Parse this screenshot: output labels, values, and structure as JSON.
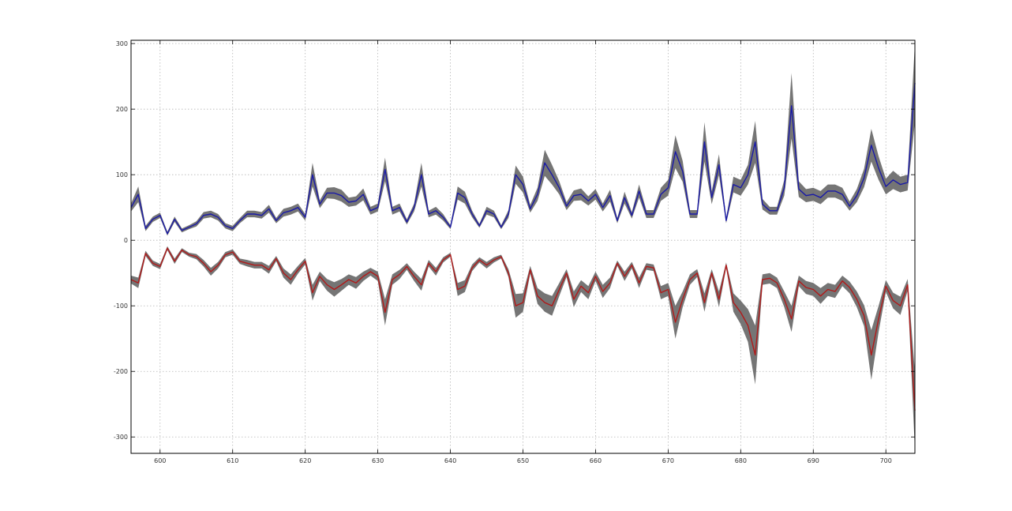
{
  "chart_data": {
    "type": "line",
    "title": "",
    "xlabel": "",
    "ylabel": "",
    "xlim": [
      596,
      704
    ],
    "ylim": [
      -325,
      305
    ],
    "grid": true,
    "x_ticks": [
      600,
      610,
      620,
      630,
      640,
      650,
      660,
      670,
      680,
      690,
      700
    ],
    "y_ticks": [
      300,
      200,
      100,
      0,
      -100,
      -200,
      -300
    ],
    "x_tick_labels": [
      "600",
      "610",
      "620",
      "630",
      "640",
      "650",
      "660",
      "670",
      "680",
      "690",
      "700"
    ],
    "y_tick_labels": [
      "300",
      "200",
      "100",
      "0",
      "-100",
      "-200",
      "-300"
    ],
    "band_color": "#6e6e6e",
    "series": [
      {
        "color": "#1a1aa6",
        "band": "gray",
        "points": [
          [
            596,
            50
          ],
          [
            597,
            70
          ],
          [
            598,
            18
          ],
          [
            599,
            32
          ],
          [
            600,
            38
          ],
          [
            601,
            10
          ],
          [
            602,
            32
          ],
          [
            603,
            15
          ],
          [
            604,
            20
          ],
          [
            605,
            25
          ],
          [
            606,
            38
          ],
          [
            607,
            40
          ],
          [
            608,
            35
          ],
          [
            609,
            22
          ],
          [
            610,
            18
          ],
          [
            611,
            30
          ],
          [
            612,
            40
          ],
          [
            613,
            40
          ],
          [
            614,
            38
          ],
          [
            615,
            48
          ],
          [
            616,
            30
          ],
          [
            617,
            42
          ],
          [
            618,
            45
          ],
          [
            619,
            50
          ],
          [
            620,
            35
          ],
          [
            621,
            100
          ],
          [
            622,
            55
          ],
          [
            623,
            72
          ],
          [
            624,
            72
          ],
          [
            625,
            68
          ],
          [
            626,
            58
          ],
          [
            627,
            60
          ],
          [
            628,
            70
          ],
          [
            629,
            45
          ],
          [
            630,
            50
          ],
          [
            631,
            108
          ],
          [
            632,
            45
          ],
          [
            633,
            50
          ],
          [
            634,
            28
          ],
          [
            635,
            50
          ],
          [
            636,
            100
          ],
          [
            637,
            40
          ],
          [
            638,
            45
          ],
          [
            639,
            35
          ],
          [
            640,
            20
          ],
          [
            641,
            72
          ],
          [
            642,
            65
          ],
          [
            643,
            40
          ],
          [
            644,
            22
          ],
          [
            645,
            45
          ],
          [
            646,
            40
          ],
          [
            647,
            20
          ],
          [
            648,
            40
          ],
          [
            649,
            100
          ],
          [
            650,
            85
          ],
          [
            651,
            48
          ],
          [
            652,
            70
          ],
          [
            653,
            118
          ],
          [
            654,
            100
          ],
          [
            655,
            80
          ],
          [
            656,
            52
          ],
          [
            657,
            68
          ],
          [
            658,
            70
          ],
          [
            659,
            60
          ],
          [
            660,
            70
          ],
          [
            661,
            50
          ],
          [
            662,
            68
          ],
          [
            663,
            30
          ],
          [
            664,
            65
          ],
          [
            665,
            38
          ],
          [
            666,
            75
          ],
          [
            667,
            40
          ],
          [
            668,
            40
          ],
          [
            669,
            70
          ],
          [
            670,
            80
          ],
          [
            671,
            135
          ],
          [
            672,
            105
          ],
          [
            673,
            40
          ],
          [
            674,
            40
          ],
          [
            675,
            150
          ],
          [
            676,
            65
          ],
          [
            677,
            115
          ],
          [
            678,
            30
          ],
          [
            679,
            85
          ],
          [
            680,
            80
          ],
          [
            681,
            100
          ],
          [
            682,
            150
          ],
          [
            683,
            55
          ],
          [
            684,
            45
          ],
          [
            685,
            45
          ],
          [
            686,
            80
          ],
          [
            687,
            205
          ],
          [
            688,
            78
          ],
          [
            689,
            68
          ],
          [
            690,
            70
          ],
          [
            691,
            65
          ],
          [
            692,
            75
          ],
          [
            693,
            75
          ],
          [
            694,
            70
          ],
          [
            695,
            52
          ],
          [
            696,
            68
          ],
          [
            697,
            95
          ],
          [
            698,
            145
          ],
          [
            699,
            110
          ],
          [
            700,
            82
          ],
          [
            701,
            92
          ],
          [
            702,
            85
          ],
          [
            703,
            88
          ],
          [
            704,
            240
          ]
        ],
        "band_width": [
          6,
          12,
          4,
          4,
          4,
          3,
          4,
          3,
          3,
          4,
          5,
          5,
          5,
          4,
          4,
          4,
          5,
          5,
          5,
          6,
          4,
          6,
          6,
          6,
          5,
          18,
          6,
          8,
          9,
          9,
          7,
          7,
          9,
          6,
          6,
          18,
          6,
          6,
          4,
          6,
          18,
          5,
          6,
          5,
          3,
          10,
          9,
          5,
          3,
          6,
          5,
          3,
          6,
          14,
          12,
          6,
          10,
          20,
          15,
          10,
          6,
          8,
          9,
          7,
          8,
          6,
          9,
          4,
          9,
          5,
          10,
          6,
          6,
          10,
          12,
          25,
          16,
          6,
          6,
          30,
          10,
          16,
          4,
          12,
          12,
          15,
          32,
          8,
          6,
          6,
          12,
          50,
          12,
          10,
          10,
          10,
          10,
          10,
          10,
          7,
          10,
          14,
          25,
          18,
          12,
          14,
          12,
          12,
          60
        ]
      },
      {
        "color": "#b01a1a",
        "band": "gray",
        "points": [
          [
            596,
            -60
          ],
          [
            597,
            -65
          ],
          [
            598,
            -20
          ],
          [
            599,
            -35
          ],
          [
            600,
            -40
          ],
          [
            601,
            -12
          ],
          [
            602,
            -32
          ],
          [
            603,
            -15
          ],
          [
            604,
            -22
          ],
          [
            605,
            -25
          ],
          [
            606,
            -35
          ],
          [
            607,
            -48
          ],
          [
            608,
            -38
          ],
          [
            609,
            -22
          ],
          [
            610,
            -18
          ],
          [
            611,
            -32
          ],
          [
            612,
            -35
          ],
          [
            613,
            -38
          ],
          [
            614,
            -38
          ],
          [
            615,
            -45
          ],
          [
            616,
            -28
          ],
          [
            617,
            -50
          ],
          [
            618,
            -60
          ],
          [
            619,
            -45
          ],
          [
            620,
            -32
          ],
          [
            621,
            -80
          ],
          [
            622,
            -55
          ],
          [
            623,
            -68
          ],
          [
            624,
            -75
          ],
          [
            625,
            -68
          ],
          [
            626,
            -60
          ],
          [
            627,
            -65
          ],
          [
            628,
            -55
          ],
          [
            629,
            -48
          ],
          [
            630,
            -55
          ],
          [
            631,
            -110
          ],
          [
            632,
            -60
          ],
          [
            633,
            -52
          ],
          [
            634,
            -40
          ],
          [
            635,
            -55
          ],
          [
            636,
            -68
          ],
          [
            637,
            -35
          ],
          [
            638,
            -48
          ],
          [
            639,
            -30
          ],
          [
            640,
            -22
          ],
          [
            641,
            -75
          ],
          [
            642,
            -70
          ],
          [
            643,
            -42
          ],
          [
            644,
            -30
          ],
          [
            645,
            -38
          ],
          [
            646,
            -30
          ],
          [
            647,
            -25
          ],
          [
            648,
            -50
          ],
          [
            649,
            -100
          ],
          [
            650,
            -95
          ],
          [
            651,
            -45
          ],
          [
            652,
            -85
          ],
          [
            653,
            -95
          ],
          [
            654,
            -100
          ],
          [
            655,
            -75
          ],
          [
            656,
            -50
          ],
          [
            657,
            -90
          ],
          [
            658,
            -70
          ],
          [
            659,
            -80
          ],
          [
            660,
            -55
          ],
          [
            661,
            -78
          ],
          [
            662,
            -65
          ],
          [
            663,
            -35
          ],
          [
            664,
            -55
          ],
          [
            665,
            -38
          ],
          [
            666,
            -65
          ],
          [
            667,
            -40
          ],
          [
            668,
            -42
          ],
          [
            669,
            -80
          ],
          [
            670,
            -75
          ],
          [
            671,
            -125
          ],
          [
            672,
            -90
          ],
          [
            673,
            -60
          ],
          [
            674,
            -50
          ],
          [
            675,
            -95
          ],
          [
            676,
            -50
          ],
          [
            677,
            -90
          ],
          [
            678,
            -38
          ],
          [
            679,
            -95
          ],
          [
            680,
            -110
          ],
          [
            681,
            -130
          ],
          [
            682,
            -175
          ],
          [
            683,
            -60
          ],
          [
            684,
            -58
          ],
          [
            685,
            -65
          ],
          [
            686,
            -90
          ],
          [
            687,
            -120
          ],
          [
            688,
            -62
          ],
          [
            689,
            -72
          ],
          [
            690,
            -75
          ],
          [
            691,
            -85
          ],
          [
            692,
            -75
          ],
          [
            693,
            -78
          ],
          [
            694,
            -62
          ],
          [
            695,
            -72
          ],
          [
            696,
            -90
          ],
          [
            697,
            -115
          ],
          [
            698,
            -175
          ],
          [
            699,
            -120
          ],
          [
            700,
            -70
          ],
          [
            701,
            -92
          ],
          [
            702,
            -100
          ],
          [
            703,
            -68
          ],
          [
            704,
            -260
          ]
        ],
        "band_width": [
          6,
          8,
          4,
          4,
          4,
          3,
          4,
          3,
          3,
          4,
          5,
          6,
          5,
          4,
          4,
          4,
          5,
          5,
          5,
          6,
          4,
          7,
          8,
          6,
          5,
          12,
          7,
          9,
          11,
          9,
          8,
          9,
          7,
          6,
          7,
          20,
          8,
          7,
          5,
          7,
          9,
          5,
          6,
          4,
          3,
          10,
          9,
          5,
          4,
          5,
          4,
          3,
          6,
          18,
          14,
          6,
          12,
          14,
          15,
          10,
          6,
          12,
          9,
          10,
          7,
          10,
          8,
          4,
          7,
          5,
          8,
          5,
          5,
          10,
          10,
          25,
          12,
          8,
          6,
          14,
          6,
          12,
          4,
          14,
          18,
          25,
          45,
          8,
          8,
          8,
          12,
          20,
          8,
          10,
          10,
          12,
          10,
          10,
          8,
          9,
          12,
          16,
          38,
          20,
          9,
          12,
          14,
          9,
          60
        ]
      }
    ]
  }
}
